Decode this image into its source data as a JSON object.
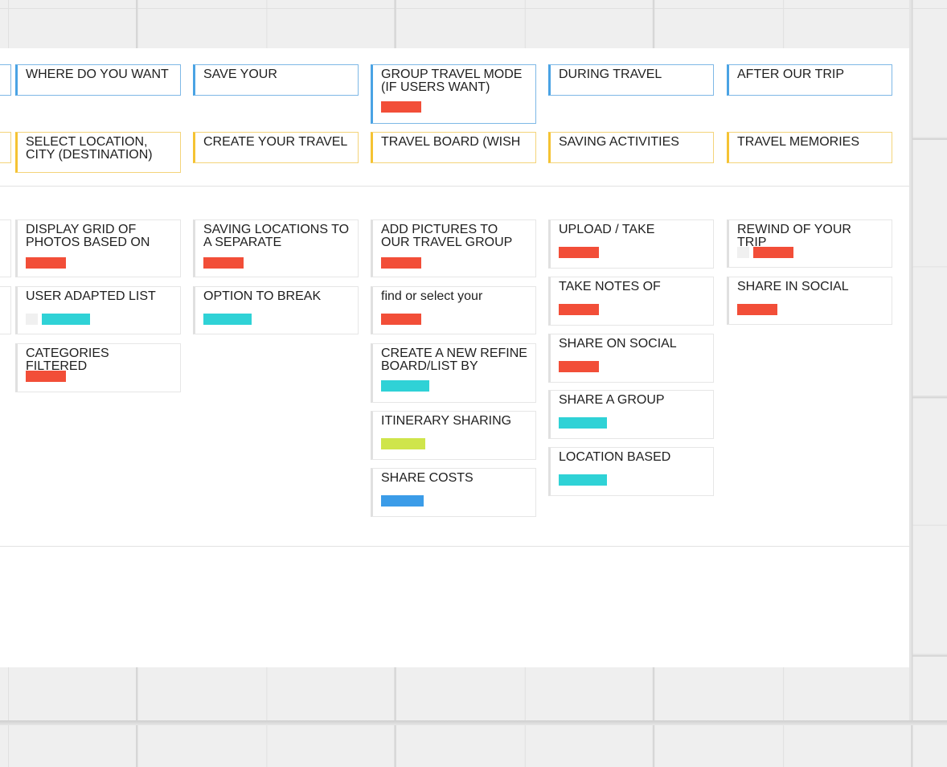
{
  "columns": [
    {
      "header": {
        "label": "WHERE DO YOU WANT"
      },
      "category": {
        "label": "SELECT LOCATION, CITY (DESTINATION)"
      },
      "cards": [
        {
          "label": "DISPLAY GRID OF PHOTOS BASED ON",
          "tags": [
            "red"
          ]
        },
        {
          "label": "USER ADAPTED LIST",
          "tags": [
            "light",
            "cyan"
          ]
        },
        {
          "label": "CATEGORIES FILTERED",
          "tags": [
            "red"
          ]
        }
      ]
    },
    {
      "header": {
        "label": "SAVE YOUR"
      },
      "category": {
        "label": "CREATE YOUR TRAVEL"
      },
      "cards": [
        {
          "label": "SAVING LOCATIONS TO A SEPARATE",
          "tags": [
            "red"
          ]
        },
        {
          "label": "OPTION TO BREAK",
          "tags": [
            "cyan"
          ]
        }
      ]
    },
    {
      "header": {
        "label": "GROUP TRAVEL MODE (IF USERS WANT)",
        "tags": [
          "red"
        ]
      },
      "category": {
        "label": "TRAVEL BOARD (WISH"
      },
      "cards": [
        {
          "label": "ADD PICTURES TO OUR TRAVEL GROUP",
          "tags": [
            "red"
          ]
        },
        {
          "label": "find or select your",
          "tags": [
            "red"
          ]
        },
        {
          "label": "CREATE A NEW REFINE BOARD/LIST BY",
          "tags": [
            "cyan"
          ]
        },
        {
          "label": "ITINERARY SHARING",
          "tags": [
            "lime"
          ]
        },
        {
          "label": "SHARE COSTS",
          "tags": [
            "blue"
          ]
        }
      ]
    },
    {
      "header": {
        "label": "DURING TRAVEL"
      },
      "category": {
        "label": "SAVING ACTIVITIES"
      },
      "cards": [
        {
          "label": "UPLOAD  / TAKE",
          "tags": [
            "red"
          ]
        },
        {
          "label": "TAKE NOTES OF",
          "tags": [
            "red"
          ]
        },
        {
          "label": "SHARE ON SOCIAL",
          "tags": [
            "red"
          ]
        },
        {
          "label": "SHARE A GROUP",
          "tags": [
            "cyan"
          ]
        },
        {
          "label": "LOCATION BASED",
          "tags": [
            "cyan"
          ]
        }
      ]
    },
    {
      "header": {
        "label": "AFTER OUR TRIP"
      },
      "category": {
        "label": "TRAVEL MEMORIES"
      },
      "cards": [
        {
          "label": "REWIND OF YOUR TRIP",
          "tags": [
            "light",
            "red"
          ]
        },
        {
          "label": "SHARE IN SOCIAL",
          "tags": [
            "red"
          ]
        }
      ]
    }
  ],
  "colors": {
    "header_border": "#4aa3e4",
    "category_border": "#f5c333",
    "tag_red": "#f24e38",
    "tag_cyan": "#2fd2d6",
    "tag_lime": "#cfe54b",
    "tag_blue": "#3b9ce8"
  }
}
